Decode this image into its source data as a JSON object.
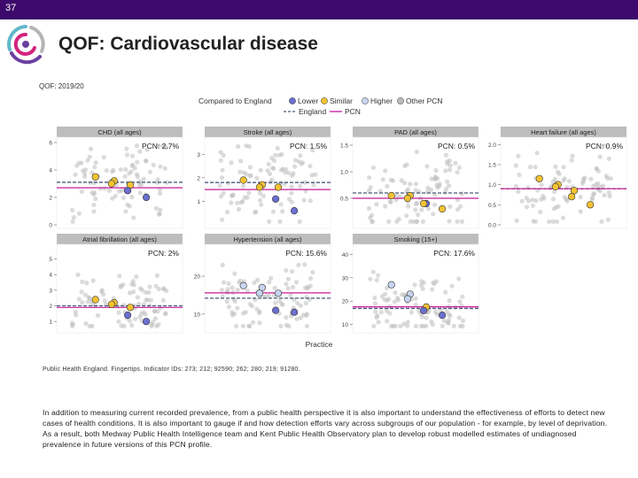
{
  "slide_number": "37",
  "title": "QOF: Cardiovascular disease",
  "source_note": "Public Health England. Fingertips. Indicator IDs: 273; 212; 92590; 262; 280; 219; 91280.",
  "paragraph": "In addition to measuring current recorded prevalence, from a public health perspective it is also important to understand the effectiveness of efforts to detect new cases of health conditions. It is also important to gauge if and how detection efforts vary across subgroups of our population - for example, by level of deprivation. As a result, both Medway Public Health Intelligence team and Kent Public Health Observatory plan to develop robust modelled estimates of undiagnosed prevalence in future versions of this PCN profile.",
  "colors": {
    "brand_bar": "#3d0a6b",
    "lower": "#6b6fcf",
    "similar": "#f2c232",
    "higher": "#c6d4f0",
    "other_pcn": "#bdbdbd",
    "england_line": "#4a5a7a",
    "pcn_line": "#c8189a",
    "panel_bg": "#ffffff",
    "strip_bg": "#bdbdbd"
  },
  "chart_data": {
    "type": "scatter",
    "subtitle": "QOF: 2019/20",
    "xlabel": "Practice",
    "legend": {
      "title_points": "Compared to England",
      "points": [
        "Lower",
        "Similar",
        "Higher",
        "Other PCN"
      ],
      "lines": [
        "England",
        "PCN"
      ],
      "placement": "top"
    },
    "panels": [
      {
        "label": "CHD (all ages)",
        "pcn_label": "PCN: 2.7%",
        "ylim": [
          0,
          6
        ],
        "yticks": [
          0,
          2,
          4,
          6
        ],
        "england": 3.1,
        "pcn": 2.7,
        "practices": [
          {
            "y": 3.5,
            "c": "similar"
          },
          {
            "y": 3.2,
            "c": "similar"
          },
          {
            "y": 3.0,
            "c": "similar"
          },
          {
            "y": 2.9,
            "c": "similar"
          },
          {
            "y": 2.5,
            "c": "lower"
          },
          {
            "y": 2.0,
            "c": "lower"
          }
        ]
      },
      {
        "label": "Stroke (all ages)",
        "pcn_label": "PCN: 1.5%",
        "ylim": [
          0,
          3.5
        ],
        "yticks": [
          1,
          2,
          3
        ],
        "england": 1.8,
        "pcn": 1.5,
        "practices": [
          {
            "y": 1.9,
            "c": "similar"
          },
          {
            "y": 1.7,
            "c": "similar"
          },
          {
            "y": 1.6,
            "c": "similar"
          },
          {
            "y": 1.6,
            "c": "similar"
          },
          {
            "y": 1.1,
            "c": "lower"
          },
          {
            "y": 0.6,
            "c": "lower"
          }
        ]
      },
      {
        "label": "PAD (all ages)",
        "pcn_label": "PCN: 0.5%",
        "ylim": [
          0,
          1.55
        ],
        "yticks": [
          0.5,
          1.0,
          1.5
        ],
        "england": 0.6,
        "pcn": 0.5,
        "practices": [
          {
            "y": 0.55,
            "c": "similar"
          },
          {
            "y": 0.55,
            "c": "similar"
          },
          {
            "y": 0.5,
            "c": "similar"
          },
          {
            "y": 0.4,
            "c": "lower"
          },
          {
            "y": 0.4,
            "c": "similar"
          },
          {
            "y": 0.3,
            "c": "similar"
          }
        ]
      },
      {
        "label": "Heart failure (all ages)",
        "pcn_label": "PCN: 0.9%",
        "ylim": [
          0,
          2.05
        ],
        "yticks": [
          0.0,
          0.5,
          1.0,
          1.5,
          2.0
        ],
        "england": 0.9,
        "pcn": 0.9,
        "practices": [
          {
            "y": 1.15,
            "c": "similar"
          },
          {
            "y": 1.0,
            "c": "similar"
          },
          {
            "y": 0.95,
            "c": "similar"
          },
          {
            "y": 0.85,
            "c": "similar"
          },
          {
            "y": 0.7,
            "c": "similar"
          },
          {
            "y": 0.5,
            "c": "similar"
          }
        ]
      },
      {
        "label": "Atrial fibrillation (all ages)",
        "pcn_label": "PCN: 2%",
        "ylim": [
          0.5,
          5.6
        ],
        "yticks": [
          1,
          2,
          3,
          4,
          5
        ],
        "england": 2.0,
        "pcn": 1.9,
        "practices": [
          {
            "y": 2.4,
            "c": "similar"
          },
          {
            "y": 2.2,
            "c": "similar"
          },
          {
            "y": 2.1,
            "c": "similar"
          },
          {
            "y": 1.9,
            "c": "similar"
          },
          {
            "y": 1.4,
            "c": "lower"
          },
          {
            "y": 1.0,
            "c": "lower"
          }
        ]
      },
      {
        "label": "Hypertension (all ages)",
        "pcn_label": "PCN: 15.6%",
        "ylim": [
          6,
          27
        ],
        "yticks": [
          10,
          20
        ],
        "england": 14.2,
        "pcn": 15.6,
        "practices": [
          {
            "y": 17.5,
            "c": "higher"
          },
          {
            "y": 17.0,
            "c": "higher"
          },
          {
            "y": 15.5,
            "c": "higher"
          },
          {
            "y": 15.5,
            "c": "higher"
          },
          {
            "y": 11.0,
            "c": "lower"
          },
          {
            "y": 10.5,
            "c": "lower"
          }
        ]
      },
      {
        "label": "Smoking (15+)",
        "pcn_label": "PCN: 17.6%",
        "ylim": [
          8,
          42
        ],
        "yticks": [
          10,
          20,
          30,
          40
        ],
        "england": 16.9,
        "pcn": 17.6,
        "practices": [
          {
            "y": 27.0,
            "c": "higher"
          },
          {
            "y": 23.0,
            "c": "higher"
          },
          {
            "y": 21.0,
            "c": "higher"
          },
          {
            "y": 17.5,
            "c": "similar"
          },
          {
            "y": 16.0,
            "c": "lower"
          },
          {
            "y": 14.0,
            "c": "lower"
          }
        ]
      }
    ]
  }
}
